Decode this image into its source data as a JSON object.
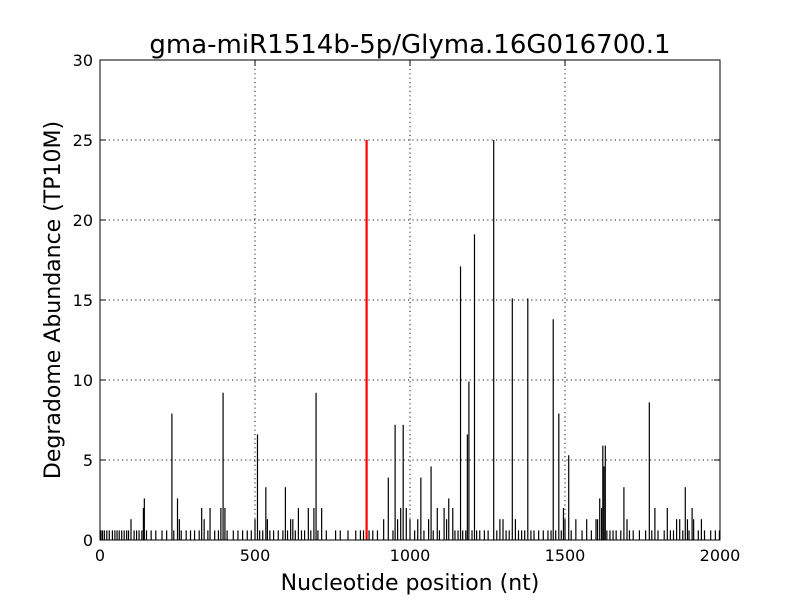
{
  "chart_data": {
    "type": "bar",
    "title": "gma-miR1514b-5p/Glyma.16G016700.1",
    "xlabel": "Nucleotide position (nt)",
    "ylabel": "Degradome Abundance (TP10M)",
    "xlim": [
      0,
      2000
    ],
    "ylim": [
      0,
      30
    ],
    "x_ticks": [
      0,
      500,
      1000,
      1500,
      2000
    ],
    "y_ticks": [
      0,
      5,
      10,
      15,
      20,
      25,
      30
    ],
    "grid": true,
    "highlight_color": "#ff0000",
    "bar_color": "#000000",
    "highlight": {
      "x": 860,
      "y": 25
    },
    "series": [
      {
        "values": [
          [
            3,
            0.6
          ],
          [
            8,
            0.6
          ],
          [
            14,
            0.6
          ],
          [
            22,
            0.6
          ],
          [
            30,
            0.6
          ],
          [
            40,
            0.6
          ],
          [
            48,
            0.6
          ],
          [
            55,
            0.6
          ],
          [
            62,
            0.6
          ],
          [
            70,
            0.6
          ],
          [
            78,
            0.6
          ],
          [
            86,
            0.6
          ],
          [
            92,
            0.6
          ],
          [
            100,
            1.3
          ],
          [
            110,
            0.6
          ],
          [
            118,
            0.6
          ],
          [
            126,
            0.6
          ],
          [
            135,
            0.6
          ],
          [
            140,
            2.0
          ],
          [
            143,
            2.6
          ],
          [
            150,
            0.6
          ],
          [
            165,
            0.6
          ],
          [
            180,
            0.6
          ],
          [
            200,
            0.6
          ],
          [
            215,
            0.6
          ],
          [
            232,
            7.9
          ],
          [
            238,
            0.6
          ],
          [
            250,
            2.6
          ],
          [
            256,
            1.3
          ],
          [
            262,
            0.6
          ],
          [
            278,
            0.6
          ],
          [
            292,
            0.6
          ],
          [
            305,
            0.6
          ],
          [
            320,
            0.6
          ],
          [
            328,
            2.0
          ],
          [
            336,
            1.3
          ],
          [
            348,
            0.6
          ],
          [
            355,
            2.0
          ],
          [
            370,
            0.6
          ],
          [
            382,
            0.6
          ],
          [
            390,
            2.0
          ],
          [
            397,
            9.2
          ],
          [
            403,
            2.0
          ],
          [
            410,
            0.6
          ],
          [
            430,
            0.6
          ],
          [
            445,
            0.6
          ],
          [
            460,
            0.6
          ],
          [
            475,
            0.6
          ],
          [
            488,
            0.6
          ],
          [
            500,
            1.3
          ],
          [
            508,
            6.6
          ],
          [
            515,
            0.6
          ],
          [
            525,
            0.6
          ],
          [
            535,
            3.3
          ],
          [
            540,
            1.3
          ],
          [
            548,
            0.6
          ],
          [
            560,
            0.6
          ],
          [
            575,
            0.6
          ],
          [
            590,
            0.6
          ],
          [
            598,
            3.3
          ],
          [
            605,
            0.6
          ],
          [
            615,
            1.3
          ],
          [
            622,
            1.3
          ],
          [
            630,
            0.6
          ],
          [
            640,
            2.0
          ],
          [
            650,
            0.6
          ],
          [
            660,
            0.6
          ],
          [
            672,
            2.0
          ],
          [
            680,
            0.6
          ],
          [
            690,
            2.0
          ],
          [
            697,
            9.2
          ],
          [
            703,
            0.6
          ],
          [
            715,
            2.0
          ],
          [
            730,
            0.6
          ],
          [
            760,
            0.6
          ],
          [
            775,
            0.6
          ],
          [
            800,
            0.6
          ],
          [
            825,
            0.6
          ],
          [
            840,
            0.6
          ],
          [
            850,
            0.6
          ],
          [
            868,
            0.6
          ],
          [
            880,
            0.6
          ],
          [
            895,
            0.6
          ],
          [
            915,
            1.3
          ],
          [
            930,
            3.9
          ],
          [
            945,
            0.6
          ],
          [
            952,
            7.2
          ],
          [
            960,
            1.3
          ],
          [
            970,
            2.0
          ],
          [
            978,
            7.2
          ],
          [
            988,
            2.0
          ],
          [
            1000,
            1.3
          ],
          [
            1015,
            0.6
          ],
          [
            1025,
            1.3
          ],
          [
            1035,
            3.9
          ],
          [
            1045,
            0.6
          ],
          [
            1060,
            1.3
          ],
          [
            1068,
            4.6
          ],
          [
            1075,
            0.6
          ],
          [
            1088,
            2.0
          ],
          [
            1095,
            0.6
          ],
          [
            1110,
            2.0
          ],
          [
            1118,
            1.3
          ],
          [
            1125,
            2.6
          ],
          [
            1138,
            2.0
          ],
          [
            1145,
            0.6
          ],
          [
            1155,
            0.6
          ],
          [
            1163,
            17.1
          ],
          [
            1170,
            0.6
          ],
          [
            1180,
            0.6
          ],
          [
            1185,
            6.6
          ],
          [
            1190,
            9.9
          ],
          [
            1200,
            0.6
          ],
          [
            1208,
            19.1
          ],
          [
            1215,
            0.6
          ],
          [
            1225,
            0.6
          ],
          [
            1240,
            0.6
          ],
          [
            1252,
            0.6
          ],
          [
            1270,
            25.0
          ],
          [
            1280,
            0.6
          ],
          [
            1290,
            1.3
          ],
          [
            1300,
            1.3
          ],
          [
            1310,
            0.6
          ],
          [
            1320,
            0.6
          ],
          [
            1330,
            15.1
          ],
          [
            1340,
            1.3
          ],
          [
            1350,
            0.6
          ],
          [
            1360,
            0.6
          ],
          [
            1370,
            0.6
          ],
          [
            1380,
            15.1
          ],
          [
            1390,
            0.6
          ],
          [
            1400,
            0.6
          ],
          [
            1415,
            0.6
          ],
          [
            1430,
            0.6
          ],
          [
            1445,
            0.6
          ],
          [
            1455,
            0.6
          ],
          [
            1462,
            13.8
          ],
          [
            1470,
            0.6
          ],
          [
            1480,
            7.9
          ],
          [
            1488,
            0.6
          ],
          [
            1495,
            2.0
          ],
          [
            1500,
            1.3
          ],
          [
            1512,
            5.3
          ],
          [
            1520,
            0.6
          ],
          [
            1535,
            1.3
          ],
          [
            1555,
            0.6
          ],
          [
            1570,
            1.3
          ],
          [
            1585,
            0.6
          ],
          [
            1600,
            1.3
          ],
          [
            1605,
            1.3
          ],
          [
            1612,
            2.6
          ],
          [
            1618,
            2.0
          ],
          [
            1622,
            5.9
          ],
          [
            1626,
            4.6
          ],
          [
            1630,
            5.9
          ],
          [
            1635,
            0.6
          ],
          [
            1645,
            0.6
          ],
          [
            1655,
            0.6
          ],
          [
            1665,
            0.6
          ],
          [
            1680,
            0.6
          ],
          [
            1690,
            3.3
          ],
          [
            1700,
            1.3
          ],
          [
            1708,
            0.6
          ],
          [
            1720,
            0.6
          ],
          [
            1740,
            0.6
          ],
          [
            1760,
            0.6
          ],
          [
            1772,
            8.6
          ],
          [
            1780,
            0.6
          ],
          [
            1790,
            2.0
          ],
          [
            1800,
            0.6
          ],
          [
            1820,
            0.6
          ],
          [
            1830,
            2.0
          ],
          [
            1840,
            0.6
          ],
          [
            1850,
            0.6
          ],
          [
            1860,
            1.3
          ],
          [
            1870,
            1.3
          ],
          [
            1880,
            0.6
          ],
          [
            1888,
            3.3
          ],
          [
            1895,
            1.3
          ],
          [
            1900,
            0.6
          ],
          [
            1910,
            2.0
          ],
          [
            1915,
            1.3
          ],
          [
            1930,
            0.6
          ],
          [
            1940,
            1.3
          ],
          [
            1950,
            0.6
          ],
          [
            1970,
            0.6
          ],
          [
            1985,
            0.6
          ],
          [
            1998,
            0.6
          ]
        ]
      }
    ]
  }
}
